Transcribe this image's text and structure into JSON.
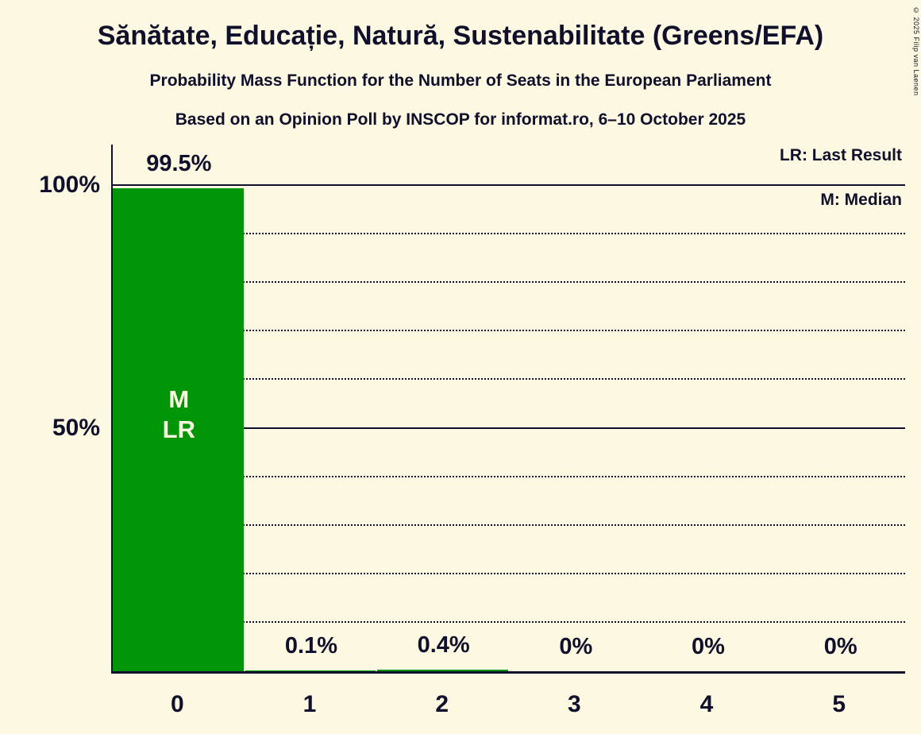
{
  "page": {
    "copyright": "© 2025 Filip van Laenen",
    "background_color": "#FCF8E1",
    "text_color": "#10102C"
  },
  "header": {
    "title": "Sănătate, Educație, Natură, Sustenabilitate (Greens/EFA)",
    "subtitle": "Probability Mass Function for the Number of Seats in the European Parliament",
    "poll_line": "Based on an Opinion Poll by INSCOP for informat.ro, 6–10 October 2025"
  },
  "legend": {
    "last_result": "LR: Last Result",
    "median": "M: Median"
  },
  "chart_data": {
    "type": "bar",
    "title": "Probability Mass Function for the Number of Seats in the European Parliament",
    "categories": [
      "0",
      "1",
      "2",
      "3",
      "4",
      "5"
    ],
    "values": [
      99.5,
      0.1,
      0.4,
      0,
      0,
      0
    ],
    "value_labels": [
      "99.5%",
      "0.1%",
      "0.4%",
      "0%",
      "0%",
      "0%"
    ],
    "bar_color": "#009608",
    "median_bar_index": 0,
    "last_result_bar_index": 0,
    "bar_inner_label_lines": [
      "M",
      "LR"
    ],
    "y_ticks": [
      {
        "value": 100,
        "label": "100%"
      },
      {
        "value": 50,
        "label": "50%"
      }
    ],
    "solid_gridlines": [
      50,
      100
    ],
    "dotted_gridlines": [
      10,
      20,
      30,
      40,
      60,
      70,
      80,
      90
    ],
    "ylim": [
      0,
      109
    ],
    "grid": "horizontal-dotted",
    "legend_position": "top-right"
  }
}
